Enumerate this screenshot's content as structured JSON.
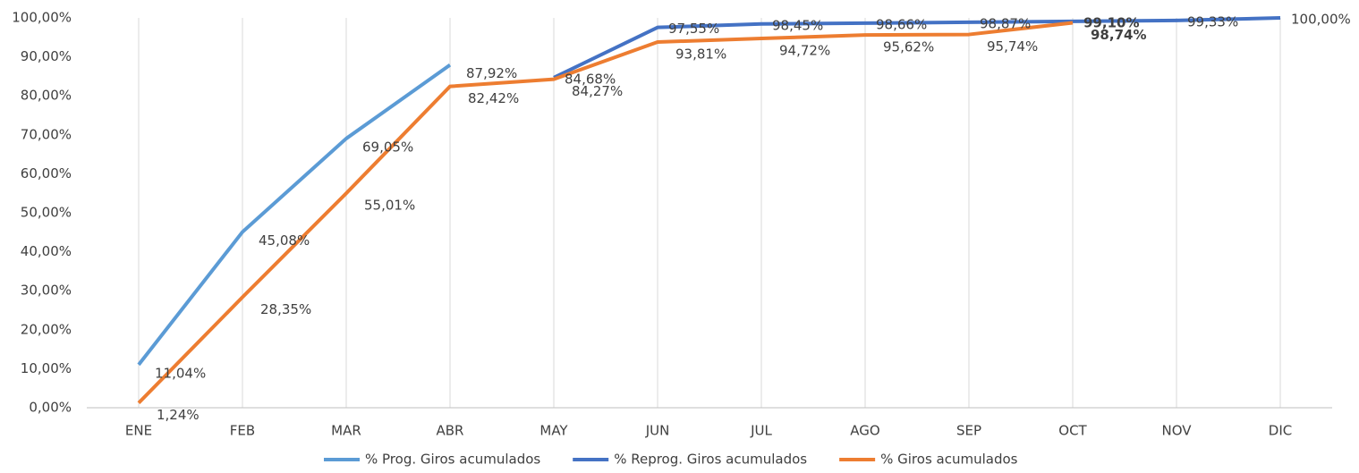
{
  "chart_data": {
    "type": "line",
    "categories": [
      "ENE",
      "FEB",
      "MAR",
      "ABR",
      "MAY",
      "JUN",
      "JUL",
      "AGO",
      "SEP",
      "OCT",
      "NOV",
      "DIC"
    ],
    "series": [
      {
        "name": "% Prog. Giros acumulados",
        "color": "#5b9bd5",
        "values": [
          11.04,
          45.08,
          69.05,
          87.92,
          null,
          null,
          null,
          null,
          null,
          null,
          null,
          null
        ],
        "value_labels": [
          "11,04%",
          "45,08%",
          "69,05%",
          "87,92%",
          null,
          null,
          null,
          null,
          null,
          null,
          null,
          null
        ]
      },
      {
        "name": "% Reprog. Giros acumulados",
        "color": "#4472c4",
        "values": [
          null,
          null,
          null,
          null,
          84.68,
          97.55,
          98.45,
          98.66,
          98.87,
          99.1,
          99.33,
          100
        ],
        "value_labels": [
          null,
          null,
          null,
          null,
          "84,68%",
          "97,55%",
          "98,45%",
          "98,66%",
          "98,87%",
          "99,10%",
          "99,33%",
          "100,00%"
        ]
      },
      {
        "name": "% Giros acumulados",
        "color": "#ed7d31",
        "values": [
          1.24,
          28.35,
          55.01,
          82.42,
          84.27,
          93.81,
          94.72,
          95.62,
          95.74,
          98.74,
          null,
          null
        ],
        "value_labels": [
          "1,24%",
          "28,35%",
          "55,01%",
          "82,42%",
          "84,27%",
          "93,81%",
          "94,72%",
          "95,62%",
          "95,74%",
          "98,74%",
          null,
          null
        ]
      }
    ],
    "ylim": [
      0,
      100
    ],
    "yticks": [
      {
        "value": 0,
        "label": "0,00%"
      },
      {
        "value": 10,
        "label": "10,00%"
      },
      {
        "value": 20,
        "label": "20,00%"
      },
      {
        "value": 30,
        "label": "30,00%"
      },
      {
        "value": 40,
        "label": "40,00%"
      },
      {
        "value": 50,
        "label": "50,00%"
      },
      {
        "value": 60,
        "label": "60,00%"
      },
      {
        "value": 70,
        "label": "70,00%"
      },
      {
        "value": 80,
        "label": "80,00%"
      },
      {
        "value": 90,
        "label": "90,00%"
      },
      {
        "value": 100,
        "label": "100,00%"
      }
    ],
    "legend": "bottom"
  }
}
